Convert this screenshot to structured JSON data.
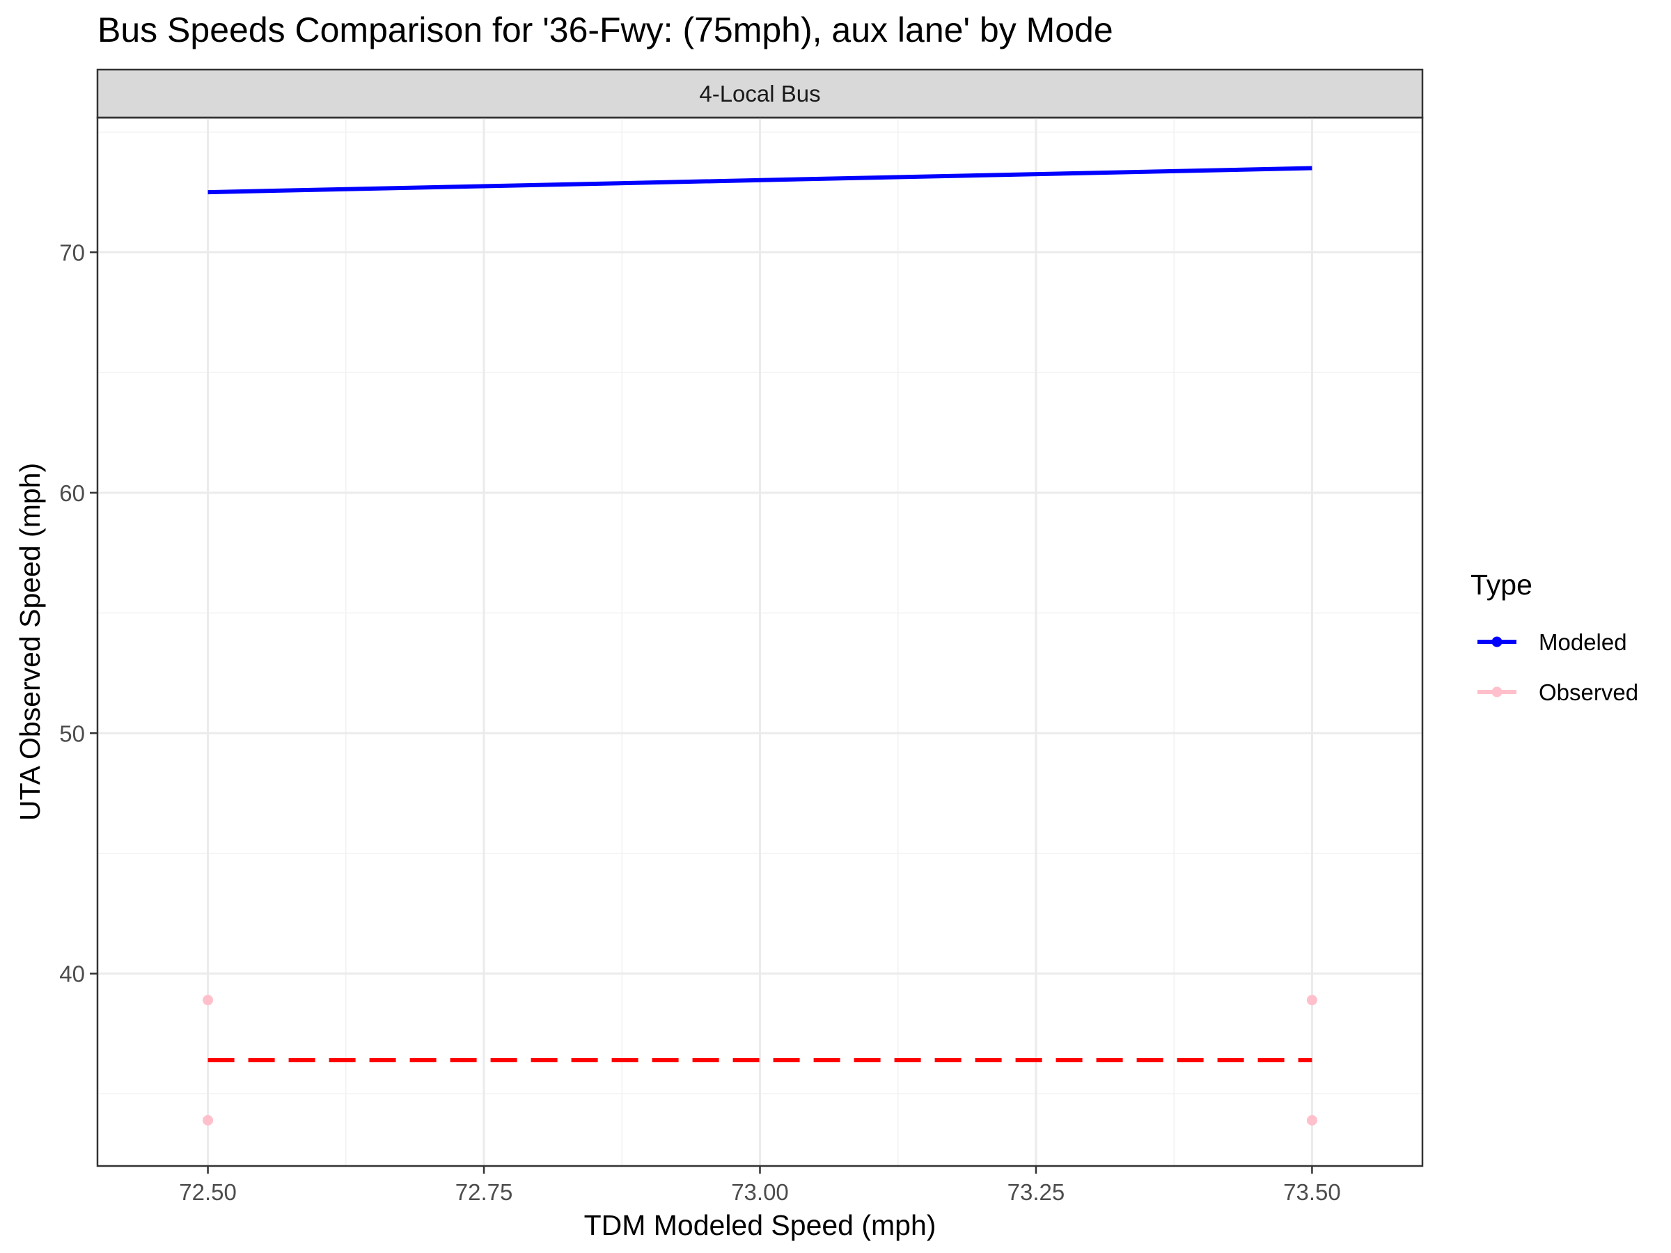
{
  "chart_data": {
    "type": "line",
    "title": "Bus Speeds Comparison for '36-Fwy: (75mph), aux lane' by Mode",
    "xlabel": "TDM Modeled Speed (mph)",
    "ylabel": "UTA Observed Speed (mph)",
    "facet": "4-Local Bus",
    "xlim": [
      72.4,
      73.6
    ],
    "ylim": [
      32,
      75.6
    ],
    "x_ticks": [
      72.5,
      72.75,
      73.0,
      73.25,
      73.5
    ],
    "x_tick_labels": [
      "72.50",
      "72.75",
      "73.00",
      "73.25",
      "73.50"
    ],
    "y_ticks": [
      40,
      50,
      60,
      70
    ],
    "y_tick_labels": [
      "40",
      "50",
      "60",
      "70"
    ],
    "grid": true,
    "legend": {
      "title": "Type",
      "position": "right",
      "entries": [
        "Modeled",
        "Observed"
      ]
    },
    "series": [
      {
        "name": "Modeled",
        "kind": "line",
        "color": "#0000ff",
        "x": [
          72.5,
          73.5
        ],
        "y": [
          72.5,
          73.5
        ]
      },
      {
        "name": "Observed",
        "kind": "points",
        "color": "#ffc0cb",
        "x": [
          72.5,
          72.5,
          73.5,
          73.5
        ],
        "y": [
          38.9,
          33.9,
          38.9,
          33.9
        ]
      }
    ],
    "reference_line": {
      "kind": "dashed",
      "color": "#ff0000",
      "x": [
        72.5,
        73.5
      ],
      "y": [
        36.4,
        36.4
      ]
    }
  }
}
